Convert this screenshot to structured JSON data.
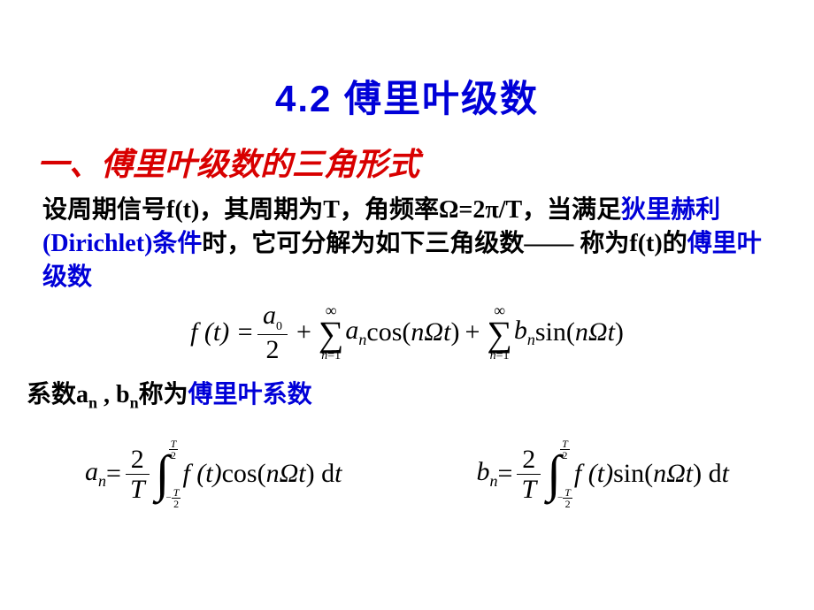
{
  "colors": {
    "title_blue": "#0000d8",
    "red": "#d80000",
    "text": "#000000",
    "background": "#ffffff"
  },
  "typography": {
    "title_size": 42,
    "subtitle_size": 36,
    "body_size": 28,
    "formula_size": 30
  },
  "title": "4.2  傅里叶级数",
  "subtitle": "一、傅里叶级数的三角形式",
  "desc": {
    "p1a": "设周期信号f(t)，其周期为T，角频率Ω=2π/T，当满足",
    "p1b": "狄里赫利(Dirichlet)条件",
    "p1c": "时，它可分解为如下三角级数—— 称为f(t)的",
    "p1d": "傅里叶级数"
  },
  "formula1": {
    "lhs": "f (t) =",
    "frac_num": "a",
    "frac_num_sub": "0",
    "frac_den": "2",
    "plus1": "+",
    "sum1_top": "∞",
    "sum1_bot_var": "n",
    "sum1_bot_eq": "=1",
    "a_n": "a",
    "a_n_sub": "n",
    "cos": " cos(",
    "nOmega_t": "nΩt",
    "close": ")",
    "plus2": "+",
    "sum2_top": "∞",
    "sum2_bot_var": "n",
    "sum2_bot_eq": "=1",
    "b_n": "b",
    "b_n_sub": "n",
    "sin": " sin(",
    "nOmega_t2": "nΩt",
    "close2": ")"
  },
  "desc2": {
    "a": "系数a",
    "a_sub": "n",
    "b": " , b",
    "b_sub": "n",
    "c": "称为",
    "d": "傅里叶系数"
  },
  "formula_an": {
    "lhs_a": "a",
    "lhs_sub": "n",
    "eq": " = ",
    "frac_num": "2",
    "frac_den": "T",
    "int_top_num": "T",
    "int_top_den": "2",
    "int_bot_neg": "−",
    "int_bot_num": "T",
    "int_bot_den": "2",
    "ft": " f (t)",
    "cos": "cos(",
    "arg": "nΩt",
    "close": ") d",
    "dt": " t"
  },
  "formula_bn": {
    "lhs_a": "b",
    "lhs_sub": "n",
    "eq": " = ",
    "frac_num": "2",
    "frac_den": "T",
    "int_top_num": "T",
    "int_top_den": "2",
    "int_bot_neg": "−",
    "int_bot_num": "T",
    "int_bot_den": "2",
    "ft": " f (t) ",
    "sin": "sin(",
    "arg": " nΩt",
    "close": ") d",
    "dt": " t"
  }
}
